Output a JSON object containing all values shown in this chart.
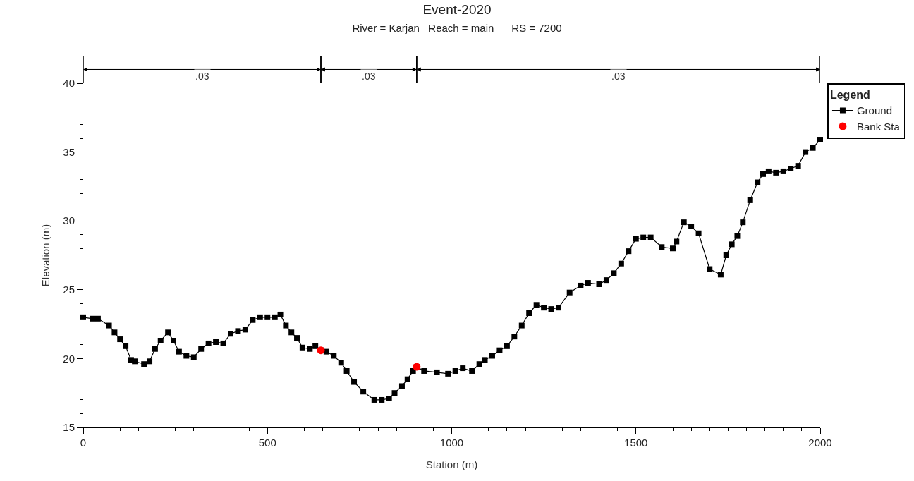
{
  "chart_data": {
    "type": "line",
    "title": "Event-2020",
    "subtitle": "River = Karjan   Reach = main      RS = 7200",
    "xlabel": "Station (m)",
    "ylabel": "Elevation (m)",
    "legend_title": "Legend",
    "xlim": [
      0,
      2000
    ],
    "xticks": [
      0,
      500,
      1000,
      1500,
      2000
    ],
    "ylim": [
      15,
      40
    ],
    "yticks": [
      15,
      20,
      25,
      30,
      35,
      40
    ],
    "legend": "top right",
    "series": [
      {
        "name": "Ground",
        "type": "line",
        "color": "#000000",
        "marker": "square",
        "x": [
          0,
          25,
          40,
          70,
          85,
          100,
          115,
          130,
          140,
          165,
          180,
          195,
          210,
          230,
          245,
          260,
          280,
          300,
          320,
          340,
          360,
          380,
          400,
          420,
          440,
          460,
          480,
          500,
          520,
          535,
          550,
          565,
          580,
          595,
          615,
          630,
          645,
          660,
          680,
          700,
          715,
          735,
          760,
          790,
          810,
          830,
          845,
          865,
          880,
          895,
          905,
          925,
          960,
          990,
          1010,
          1030,
          1055,
          1075,
          1090,
          1110,
          1130,
          1150,
          1170,
          1190,
          1210,
          1230,
          1250,
          1270,
          1290,
          1320,
          1350,
          1370,
          1400,
          1420,
          1440,
          1460,
          1480,
          1500,
          1520,
          1540,
          1570,
          1600,
          1610,
          1630,
          1650,
          1670,
          1700,
          1730,
          1745,
          1760,
          1775,
          1790,
          1810,
          1830,
          1845,
          1860,
          1880,
          1900,
          1920,
          1940,
          1960,
          1980,
          2000
        ],
        "values": [
          23.0,
          22.9,
          22.9,
          22.4,
          21.9,
          21.4,
          20.9,
          19.9,
          19.8,
          19.6,
          19.8,
          20.7,
          21.3,
          21.9,
          21.3,
          20.5,
          20.2,
          20.1,
          20.7,
          21.1,
          21.2,
          21.1,
          21.8,
          22.0,
          22.1,
          22.8,
          23.0,
          23.0,
          23.0,
          23.2,
          22.4,
          21.9,
          21.5,
          20.8,
          20.7,
          20.9,
          20.6,
          20.5,
          20.2,
          19.7,
          19.1,
          18.3,
          17.6,
          17.0,
          17.0,
          17.1,
          17.5,
          18.0,
          18.5,
          19.1,
          19.4,
          19.1,
          19.0,
          18.9,
          19.1,
          19.3,
          19.1,
          19.6,
          19.9,
          20.2,
          20.6,
          20.9,
          21.6,
          22.4,
          23.3,
          23.9,
          23.7,
          23.6,
          23.7,
          24.8,
          25.3,
          25.5,
          25.4,
          25.7,
          26.2,
          26.9,
          27.8,
          28.7,
          28.8,
          28.8,
          28.1,
          28.0,
          28.5,
          29.9,
          29.6,
          29.1,
          26.5,
          26.1,
          27.5,
          28.3,
          28.9,
          29.9,
          31.5,
          32.8,
          33.4,
          33.6,
          33.5,
          33.6,
          33.8,
          34.0,
          35.0,
          35.3,
          35.9
        ]
      },
      {
        "name": "Bank Sta",
        "type": "scatter",
        "color": "#ff0000",
        "marker": "circle",
        "x": [
          645,
          905
        ],
        "values": [
          20.6,
          19.4
        ]
      }
    ],
    "annotations": [
      ".03",
      ".03",
      ".03"
    ]
  }
}
